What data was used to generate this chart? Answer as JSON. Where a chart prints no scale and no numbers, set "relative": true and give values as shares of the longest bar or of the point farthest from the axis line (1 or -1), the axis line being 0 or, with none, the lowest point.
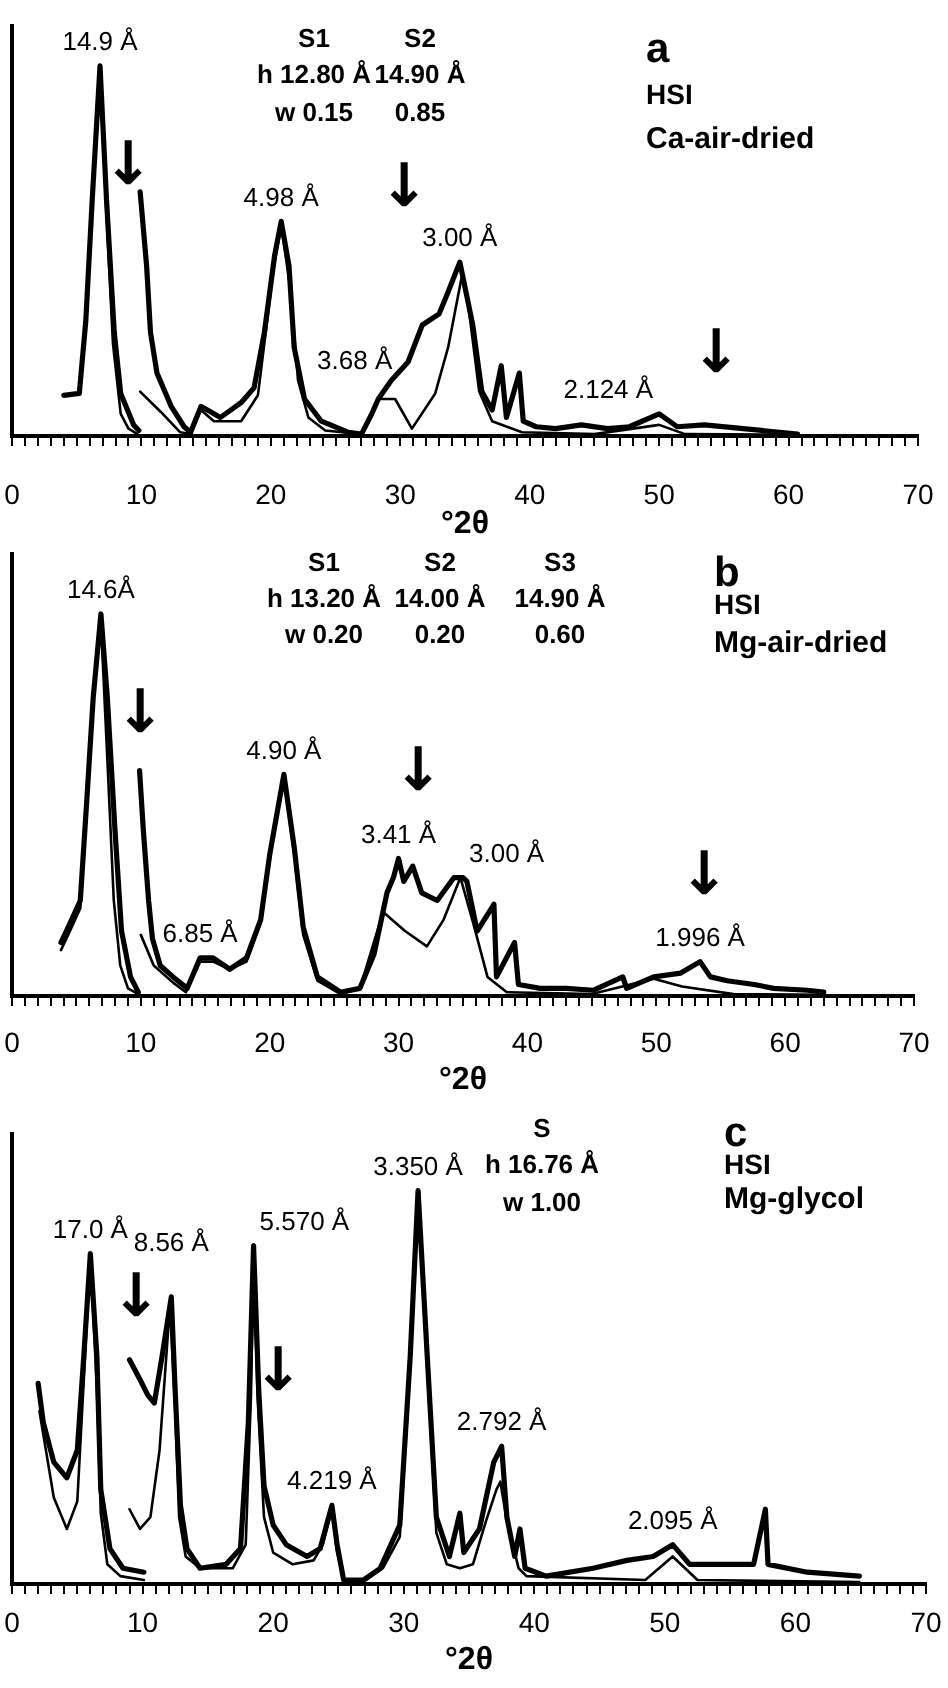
{
  "chart_data": [
    {
      "type": "line",
      "title": "a",
      "xlabel": "°2θ",
      "relative": true,
      "tick_labels": "x",
      "xlim": [
        0,
        70
      ],
      "xticks": [
        0,
        {
          "value": 1,
          "label": null
        },
        {
          "value": 2,
          "label": null
        },
        {
          "value": 3,
          "label": null
        },
        {
          "value": 4,
          "label": null
        },
        {
          "value": 5,
          "label": null
        },
        {
          "value": 6,
          "label": null
        },
        {
          "value": 7,
          "label": null
        },
        {
          "value": 8,
          "label": null
        },
        {
          "value": 9,
          "label": null
        },
        10,
        {
          "value": 11,
          "label": null
        },
        {
          "value": 12,
          "label": null
        },
        {
          "value": 13,
          "label": null
        },
        {
          "value": 14,
          "label": null
        },
        {
          "value": 15,
          "label": null
        },
        {
          "value": 16,
          "label": null
        },
        {
          "value": 17,
          "label": null
        },
        {
          "value": 18,
          "label": null
        },
        {
          "value": 19,
          "label": null
        },
        20,
        {
          "value": 21,
          "label": null
        },
        {
          "value": 22,
          "label": null
        },
        {
          "value": 23,
          "label": null
        },
        {
          "value": 24,
          "label": null
        },
        {
          "value": 25,
          "label": null
        },
        {
          "value": 26,
          "label": null
        },
        {
          "value": 27,
          "label": null
        },
        {
          "value": 28,
          "label": null
        },
        {
          "value": 29,
          "label": null
        },
        30,
        {
          "value": 31,
          "label": null
        },
        {
          "value": 32,
          "label": null
        },
        {
          "value": 33,
          "label": null
        },
        {
          "value": 34,
          "label": null
        },
        {
          "value": 35,
          "label": null
        },
        {
          "value": 36,
          "label": null
        },
        {
          "value": 37,
          "label": null
        },
        {
          "value": 38,
          "label": null
        },
        {
          "value": 39,
          "label": null
        },
        40,
        {
          "value": 41,
          "label": null
        },
        {
          "value": 42,
          "label": null
        },
        {
          "value": 43,
          "label": null
        },
        {
          "value": 44,
          "label": null
        },
        {
          "value": 45,
          "label": null
        },
        {
          "value": 46,
          "label": null
        },
        {
          "value": 47,
          "label": null
        },
        {
          "value": 48,
          "label": null
        },
        {
          "value": 49,
          "label": null
        },
        50,
        {
          "value": 51,
          "label": null
        },
        {
          "value": 52,
          "label": null
        },
        {
          "value": 53,
          "label": null
        },
        {
          "value": 54,
          "label": null
        },
        {
          "value": 55,
          "label": null
        },
        {
          "value": 56,
          "label": null
        },
        {
          "value": 57,
          "label": null
        },
        {
          "value": 58,
          "label": null
        },
        {
          "value": 59,
          "label": null
        },
        60,
        {
          "value": 61,
          "label": null
        },
        {
          "value": 62,
          "label": null
        },
        {
          "value": 63,
          "label": null
        },
        {
          "value": 64,
          "label": null
        },
        {
          "value": 65,
          "label": null
        },
        {
          "value": 66,
          "label": null
        },
        {
          "value": 67,
          "label": null
        },
        {
          "value": 68,
          "label": null
        },
        {
          "value": 69,
          "label": null
        },
        70
      ],
      "series": [
        {
          "color": "#000000",
          "x": [
            4.0,
            5.2,
            5.7,
            6.2,
            6.8,
            7.3,
            7.9,
            8.4,
            9.4,
            9.8
          ],
          "values": [
            0.11,
            0.115,
            0.31,
            0.64,
            1.0,
            0.64,
            0.28,
            0.115,
            0.03,
            0.015
          ]
        },
        {
          "color": "#000000",
          "x": [
            9.9,
            10.4,
            10.7,
            11.2,
            12.3,
            13.3,
            13.8,
            14.6,
            15.1,
            16.1,
            17.7,
            18.7,
            19.5,
            20.3,
            20.8,
            21.4,
            21.8,
            22.6,
            23.9,
            26.0,
            27.0,
            27.8,
            28.3,
            29.3,
            30.6,
            31.7,
            33.0,
            33.7,
            34.6,
            35.6,
            36.3,
            37.1,
            37.8,
            38.2,
            39.2,
            39.5,
            40.5,
            42.0,
            44.0,
            46.0,
            47.7,
            50.0,
            51.4,
            53.5,
            56.5,
            60.7
          ],
          "values": [
            0.66,
            0.46,
            0.28,
            0.17,
            0.08,
            0.025,
            0.01,
            0.08,
            0.07,
            0.05,
            0.09,
            0.13,
            0.28,
            0.49,
            0.58,
            0.46,
            0.24,
            0.1,
            0.04,
            0.01,
            0.005,
            0.06,
            0.1,
            0.15,
            0.2,
            0.3,
            0.33,
            0.39,
            0.47,
            0.3,
            0.12,
            0.07,
            0.19,
            0.05,
            0.17,
            0.04,
            0.025,
            0.02,
            0.03,
            0.02,
            0.025,
            0.06,
            0.025,
            0.03,
            0.02,
            0.005
          ]
        },
        {
          "color": "#000000",
          "x": [
            4.0,
            5.2,
            5.7,
            6.2,
            6.8,
            7.3,
            7.8,
            8.4,
            9.0,
            9.7
          ],
          "values": [
            0.11,
            0.115,
            0.3,
            0.63,
            1.0,
            0.6,
            0.25,
            0.06,
            0.02,
            0.005
          ]
        },
        {
          "color": "#000000",
          "x": [
            9.9,
            11.5,
            13.0,
            13.8,
            14.6,
            15.6,
            17.7,
            19.0,
            20.2,
            20.8,
            21.5,
            22.1,
            22.9,
            24.2,
            27.0,
            27.8,
            28.3,
            29.6,
            30.9,
            32.7,
            33.7,
            34.8,
            35.3,
            36.1,
            37.1,
            39.4,
            45.0,
            50.0,
            52.0,
            60.7
          ],
          "values": [
            0.12,
            0.065,
            0.01,
            0.005,
            0.07,
            0.04,
            0.04,
            0.11,
            0.45,
            0.57,
            0.4,
            0.15,
            0.05,
            0.015,
            0.005,
            0.06,
            0.1,
            0.1,
            0.02,
            0.115,
            0.24,
            0.44,
            0.34,
            0.12,
            0.04,
            0.01,
            0.005,
            0.03,
            0.005,
            0.003
          ]
        }
      ],
      "annotations": [
        "S1",
        "h 12.80 Å",
        "w 0.15",
        "S2",
        "14.90 Å",
        "0.85",
        "HSI",
        "Ca-air-dried",
        "↓",
        "↓",
        "↓",
        {
          "text": "14.9 Å",
          "x": 6.8,
          "y": 1.0
        },
        {
          "text": "4.98 Å",
          "x": 20.8,
          "y": 0.58
        },
        {
          "text": "3.68 Å",
          "x": 28.3,
          "y": 0.1
        },
        {
          "text": "3.00 Å",
          "x": 34.6,
          "y": 0.47
        },
        {
          "text": "2.124 Å",
          "x": 50.0,
          "y": 0.06
        }
      ]
    },
    {
      "type": "line",
      "title": "b",
      "xlabel": "°2θ",
      "relative": true,
      "tick_labels": "x",
      "xlim": [
        0,
        70
      ],
      "xticks": [
        0,
        {
          "value": 1,
          "label": null
        },
        {
          "value": 2,
          "label": null
        },
        {
          "value": 3,
          "label": null
        },
        {
          "value": 4,
          "label": null
        },
        {
          "value": 5,
          "label": null
        },
        {
          "value": 6,
          "label": null
        },
        {
          "value": 7,
          "label": null
        },
        {
          "value": 8,
          "label": null
        },
        {
          "value": 9,
          "label": null
        },
        10,
        {
          "value": 11,
          "label": null
        },
        {
          "value": 12,
          "label": null
        },
        {
          "value": 13,
          "label": null
        },
        {
          "value": 14,
          "label": null
        },
        {
          "value": 15,
          "label": null
        },
        {
          "value": 16,
          "label": null
        },
        {
          "value": 17,
          "label": null
        },
        {
          "value": 18,
          "label": null
        },
        {
          "value": 19,
          "label": null
        },
        20,
        {
          "value": 21,
          "label": null
        },
        {
          "value": 22,
          "label": null
        },
        {
          "value": 23,
          "label": null
        },
        {
          "value": 24,
          "label": null
        },
        {
          "value": 25,
          "label": null
        },
        {
          "value": 26,
          "label": null
        },
        {
          "value": 27,
          "label": null
        },
        {
          "value": 28,
          "label": null
        },
        {
          "value": 29,
          "label": null
        },
        30,
        {
          "value": 31,
          "label": null
        },
        {
          "value": 32,
          "label": null
        },
        {
          "value": 33,
          "label": null
        },
        {
          "value": 34,
          "label": null
        },
        {
          "value": 35,
          "label": null
        },
        {
          "value": 36,
          "label": null
        },
        {
          "value": 37,
          "label": null
        },
        {
          "value": 38,
          "label": null
        },
        {
          "value": 39,
          "label": null
        },
        40,
        {
          "value": 41,
          "label": null
        },
        {
          "value": 42,
          "label": null
        },
        {
          "value": 43,
          "label": null
        },
        {
          "value": 44,
          "label": null
        },
        {
          "value": 45,
          "label": null
        },
        {
          "value": 46,
          "label": null
        },
        {
          "value": 47,
          "label": null
        },
        {
          "value": 48,
          "label": null
        },
        {
          "value": 49,
          "label": null
        },
        50,
        {
          "value": 51,
          "label": null
        },
        {
          "value": 52,
          "label": null
        },
        {
          "value": 53,
          "label": null
        },
        {
          "value": 54,
          "label": null
        },
        {
          "value": 55,
          "label": null
        },
        {
          "value": 56,
          "label": null
        },
        {
          "value": 57,
          "label": null
        },
        {
          "value": 58,
          "label": null
        },
        {
          "value": 59,
          "label": null
        },
        60,
        {
          "value": 61,
          "label": null
        },
        {
          "value": 62,
          "label": null
        },
        {
          "value": 63,
          "label": null
        },
        {
          "value": 64,
          "label": null
        },
        {
          "value": 65,
          "label": null
        },
        {
          "value": 66,
          "label": null
        },
        {
          "value": 67,
          "label": null
        },
        {
          "value": 68,
          "label": null
        },
        {
          "value": 69,
          "label": null
        },
        70
      ],
      "series": [
        {
          "color": "#000000",
          "x": [
            3.8,
            4.5,
            5.3,
            5.8,
            6.3,
            6.9,
            7.4,
            8.0,
            8.5,
            9.2,
            9.8
          ],
          "values": [
            0.14,
            0.19,
            0.25,
            0.51,
            0.78,
            1.0,
            0.78,
            0.43,
            0.17,
            0.05,
            0.01
          ]
        },
        {
          "color": "#000000",
          "x": [
            9.9,
            10.2,
            10.6,
            10.9,
            11.5,
            12.5,
            13.6,
            14.6,
            15.6,
            16.9,
            18.2,
            19.3,
            20.0,
            21.1,
            21.9,
            22.6,
            23.7,
            25.5,
            27.0,
            28.1,
            29.1,
            29.6,
            30.0,
            30.4,
            31.1,
            31.8,
            33.0,
            34.3,
            35.0,
            35.3,
            36.1,
            37.4,
            37.6,
            39.0,
            39.3,
            41.0,
            43.0,
            45.1,
            47.4,
            47.7,
            49.8,
            51.9,
            53.4,
            54.2,
            55.5,
            57.6,
            59.1,
            61.7,
            63.0
          ],
          "values": [
            0.59,
            0.43,
            0.25,
            0.15,
            0.08,
            0.05,
            0.02,
            0.1,
            0.1,
            0.07,
            0.1,
            0.2,
            0.37,
            0.58,
            0.39,
            0.18,
            0.05,
            0.01,
            0.02,
            0.11,
            0.27,
            0.31,
            0.36,
            0.3,
            0.34,
            0.27,
            0.25,
            0.31,
            0.31,
            0.3,
            0.17,
            0.24,
            0.05,
            0.14,
            0.03,
            0.02,
            0.02,
            0.015,
            0.05,
            0.02,
            0.05,
            0.06,
            0.09,
            0.05,
            0.04,
            0.03,
            0.02,
            0.015,
            0.01
          ]
        },
        {
          "color": "#000000",
          "x": [
            3.8,
            4.5,
            5.3,
            5.8,
            6.3,
            6.9,
            7.4,
            7.9,
            8.4,
            9.0,
            9.8
          ],
          "values": [
            0.12,
            0.17,
            0.23,
            0.5,
            0.77,
            0.98,
            0.62,
            0.25,
            0.08,
            0.02,
            0.005
          ]
        },
        {
          "color": "#000000",
          "x": [
            10.0,
            11.0,
            12.5,
            13.5,
            14.6,
            15.6,
            16.9,
            18.2,
            19.3,
            20.0,
            21.1,
            21.9,
            22.6,
            23.7,
            25.5,
            27.0,
            28.8,
            30.5,
            32.2,
            33.5,
            34.8,
            35.8,
            36.9,
            38.4,
            45.0,
            49.8,
            52.0,
            56.0,
            63.0
          ],
          "values": [
            0.16,
            0.08,
            0.035,
            0.01,
            0.09,
            0.09,
            0.07,
            0.09,
            0.19,
            0.36,
            0.57,
            0.37,
            0.16,
            0.04,
            0.005,
            0.02,
            0.22,
            0.17,
            0.13,
            0.2,
            0.31,
            0.19,
            0.05,
            0.01,
            0.005,
            0.045,
            0.025,
            0.005,
            0.003
          ]
        }
      ],
      "annotations": [
        "S1",
        "h 13.20 Å",
        "w 0.20",
        "S2",
        "14.00 Å",
        "0.20",
        "S3",
        "14.90 Å",
        "0.60",
        "HSI",
        "Mg-air-dried",
        "↓",
        "↓",
        "↓",
        {
          "text": "14.6Å",
          "x": 6.9,
          "y": 1.0
        },
        {
          "text": "6.85 Å",
          "x": 14.6,
          "y": 0.1
        },
        {
          "text": "4.90 Å",
          "x": 21.1,
          "y": 0.58
        },
        {
          "text": "3.41 Å",
          "x": 30.0,
          "y": 0.36
        },
        {
          "text": "3.00 Å",
          "x": 35.0,
          "y": 0.31
        },
        {
          "text": "1.996 Å",
          "x": 53.4,
          "y": 0.09
        }
      ]
    },
    {
      "type": "line",
      "title": "c",
      "xlabel": "°2θ",
      "relative": true,
      "tick_labels": "x",
      "xlim": [
        0,
        70
      ],
      "xticks": [
        0,
        {
          "value": 1,
          "label": null
        },
        {
          "value": 2,
          "label": null
        },
        {
          "value": 3,
          "label": null
        },
        {
          "value": 4,
          "label": null
        },
        {
          "value": 5,
          "label": null
        },
        {
          "value": 6,
          "label": null
        },
        {
          "value": 7,
          "label": null
        },
        {
          "value": 8,
          "label": null
        },
        {
          "value": 9,
          "label": null
        },
        10,
        {
          "value": 11,
          "label": null
        },
        {
          "value": 12,
          "label": null
        },
        {
          "value": 13,
          "label": null
        },
        {
          "value": 14,
          "label": null
        },
        {
          "value": 15,
          "label": null
        },
        {
          "value": 16,
          "label": null
        },
        {
          "value": 17,
          "label": null
        },
        {
          "value": 18,
          "label": null
        },
        {
          "value": 19,
          "label": null
        },
        20,
        {
          "value": 21,
          "label": null
        },
        {
          "value": 22,
          "label": null
        },
        {
          "value": 23,
          "label": null
        },
        {
          "value": 24,
          "label": null
        },
        {
          "value": 25,
          "label": null
        },
        {
          "value": 26,
          "label": null
        },
        {
          "value": 27,
          "label": null
        },
        {
          "value": 28,
          "label": null
        },
        {
          "value": 29,
          "label": null
        },
        30,
        {
          "value": 31,
          "label": null
        },
        {
          "value": 32,
          "label": null
        },
        {
          "value": 33,
          "label": null
        },
        {
          "value": 34,
          "label": null
        },
        {
          "value": 35,
          "label": null
        },
        {
          "value": 36,
          "label": null
        },
        {
          "value": 37,
          "label": null
        },
        {
          "value": 38,
          "label": null
        },
        {
          "value": 39,
          "label": null
        },
        40,
        {
          "value": 41,
          "label": null
        },
        {
          "value": 42,
          "label": null
        },
        {
          "value": 43,
          "label": null
        },
        {
          "value": 44,
          "label": null
        },
        {
          "value": 45,
          "label": null
        },
        {
          "value": 46,
          "label": null
        },
        {
          "value": 47,
          "label": null
        },
        {
          "value": 48,
          "label": null
        },
        {
          "value": 49,
          "label": null
        },
        50,
        {
          "value": 51,
          "label": null
        },
        {
          "value": 52,
          "label": null
        },
        {
          "value": 53,
          "label": null
        },
        {
          "value": 54,
          "label": null
        },
        {
          "value": 55,
          "label": null
        },
        {
          "value": 56,
          "label": null
        },
        {
          "value": 57,
          "label": null
        },
        {
          "value": 58,
          "label": null
        },
        {
          "value": 59,
          "label": null
        },
        60,
        {
          "value": 61,
          "label": null
        },
        {
          "value": 62,
          "label": null
        },
        {
          "value": 63,
          "label": null
        },
        {
          "value": 64,
          "label": null
        },
        {
          "value": 65,
          "label": null
        },
        {
          "value": 66,
          "label": null
        },
        {
          "value": 67,
          "label": null
        },
        {
          "value": 68,
          "label": null
        },
        {
          "value": 69,
          "label": null
        },
        70
      ],
      "series": [
        {
          "color": "#000000",
          "x": [
            2.0,
            2.4,
            3.2,
            4.2,
            5.0,
            5.5,
            6.0,
            6.5,
            6.8,
            7.5,
            8.5,
            10.1
          ],
          "values": [
            0.51,
            0.41,
            0.31,
            0.27,
            0.34,
            0.58,
            0.84,
            0.58,
            0.24,
            0.09,
            0.04,
            0.03
          ]
        },
        {
          "color": "#000000",
          "x": [
            9.0,
            9.8,
            10.4,
            10.9,
            11.5,
            12.2,
            12.5,
            12.9,
            13.4,
            14.4,
            16.4,
            17.5,
            18.1,
            18.5,
            18.9,
            19.3,
            20.0,
            21.0,
            22.6,
            23.6,
            24.5,
            24.9,
            25.4,
            26.9,
            28.2,
            29.7,
            30.5,
            31.1,
            31.8,
            32.5,
            33.5,
            34.3,
            34.6,
            35.8,
            36.9,
            37.5,
            37.9,
            38.5,
            38.9,
            39.3,
            40.9,
            44.5,
            47.1,
            49.1,
            50.6,
            51.9,
            54.7,
            56.8,
            57.7,
            57.9,
            60.9,
            64.9
          ],
          "values": [
            0.57,
            0.52,
            0.48,
            0.46,
            0.58,
            0.73,
            0.49,
            0.2,
            0.09,
            0.04,
            0.05,
            0.09,
            0.41,
            0.86,
            0.49,
            0.25,
            0.15,
            0.1,
            0.07,
            0.09,
            0.2,
            0.1,
            0.01,
            0.01,
            0.04,
            0.15,
            0.58,
            1.0,
            0.58,
            0.17,
            0.07,
            0.18,
            0.08,
            0.14,
            0.31,
            0.35,
            0.17,
            0.07,
            0.14,
            0.04,
            0.02,
            0.04,
            0.06,
            0.07,
            0.1,
            0.05,
            0.05,
            0.05,
            0.19,
            0.05,
            0.03,
            0.02
          ]
        },
        {
          "color": "#000000",
          "x": [
            2.1,
            3.2,
            4.2,
            5.0,
            5.5,
            6.0,
            6.5,
            6.8,
            7.3,
            8.3,
            10.1
          ],
          "values": [
            0.44,
            0.22,
            0.14,
            0.21,
            0.52,
            0.84,
            0.5,
            0.18,
            0.05,
            0.02,
            0.01
          ]
        },
        {
          "color": "#000000",
          "x": [
            9.0,
            9.8,
            10.6,
            11.3,
            12.1,
            12.5,
            12.8,
            13.3,
            14.4,
            16.9,
            17.9,
            18.3,
            18.5,
            18.8,
            19.3,
            20.0,
            21.5,
            23.1,
            23.8,
            24.5,
            24.9,
            25.4,
            27.1,
            28.4,
            29.7,
            30.5,
            31.1,
            31.8,
            32.5,
            33.3,
            34.3,
            35.3,
            36.3,
            37.1,
            37.4,
            37.9,
            38.8,
            39.4,
            48.5,
            50.6,
            52.5,
            64.9
          ],
          "values": [
            0.19,
            0.14,
            0.17,
            0.34,
            0.71,
            0.44,
            0.17,
            0.07,
            0.04,
            0.04,
            0.1,
            0.48,
            0.85,
            0.48,
            0.17,
            0.08,
            0.05,
            0.06,
            0.1,
            0.19,
            0.08,
            0.01,
            0.01,
            0.04,
            0.12,
            0.55,
            0.99,
            0.55,
            0.13,
            0.05,
            0.04,
            0.05,
            0.16,
            0.24,
            0.26,
            0.16,
            0.04,
            0.02,
            0.01,
            0.07,
            0.01,
            0.005
          ]
        }
      ],
      "annotations": [
        "S",
        "h 16.76 Å",
        "w 1.00",
        "HSI",
        "Mg-glycol",
        "↓",
        "↓",
        {
          "text": "17.0 Å",
          "x": 6.0,
          "y": 0.84
        },
        {
          "text": "8.56 Å",
          "x": 12.2,
          "y": 0.73
        },
        {
          "text": "5.570 Å",
          "x": 18.5,
          "y": 0.86
        },
        {
          "text": "4.219 Å",
          "x": 24.5,
          "y": 0.2
        },
        {
          "text": "3.350 Å",
          "x": 31.1,
          "y": 1.0
        },
        {
          "text": "2.792 Å",
          "x": 37.5,
          "y": 0.35
        },
        {
          "text": "2.095 Å",
          "x": 50.6,
          "y": 0.1
        }
      ]
    }
  ]
}
